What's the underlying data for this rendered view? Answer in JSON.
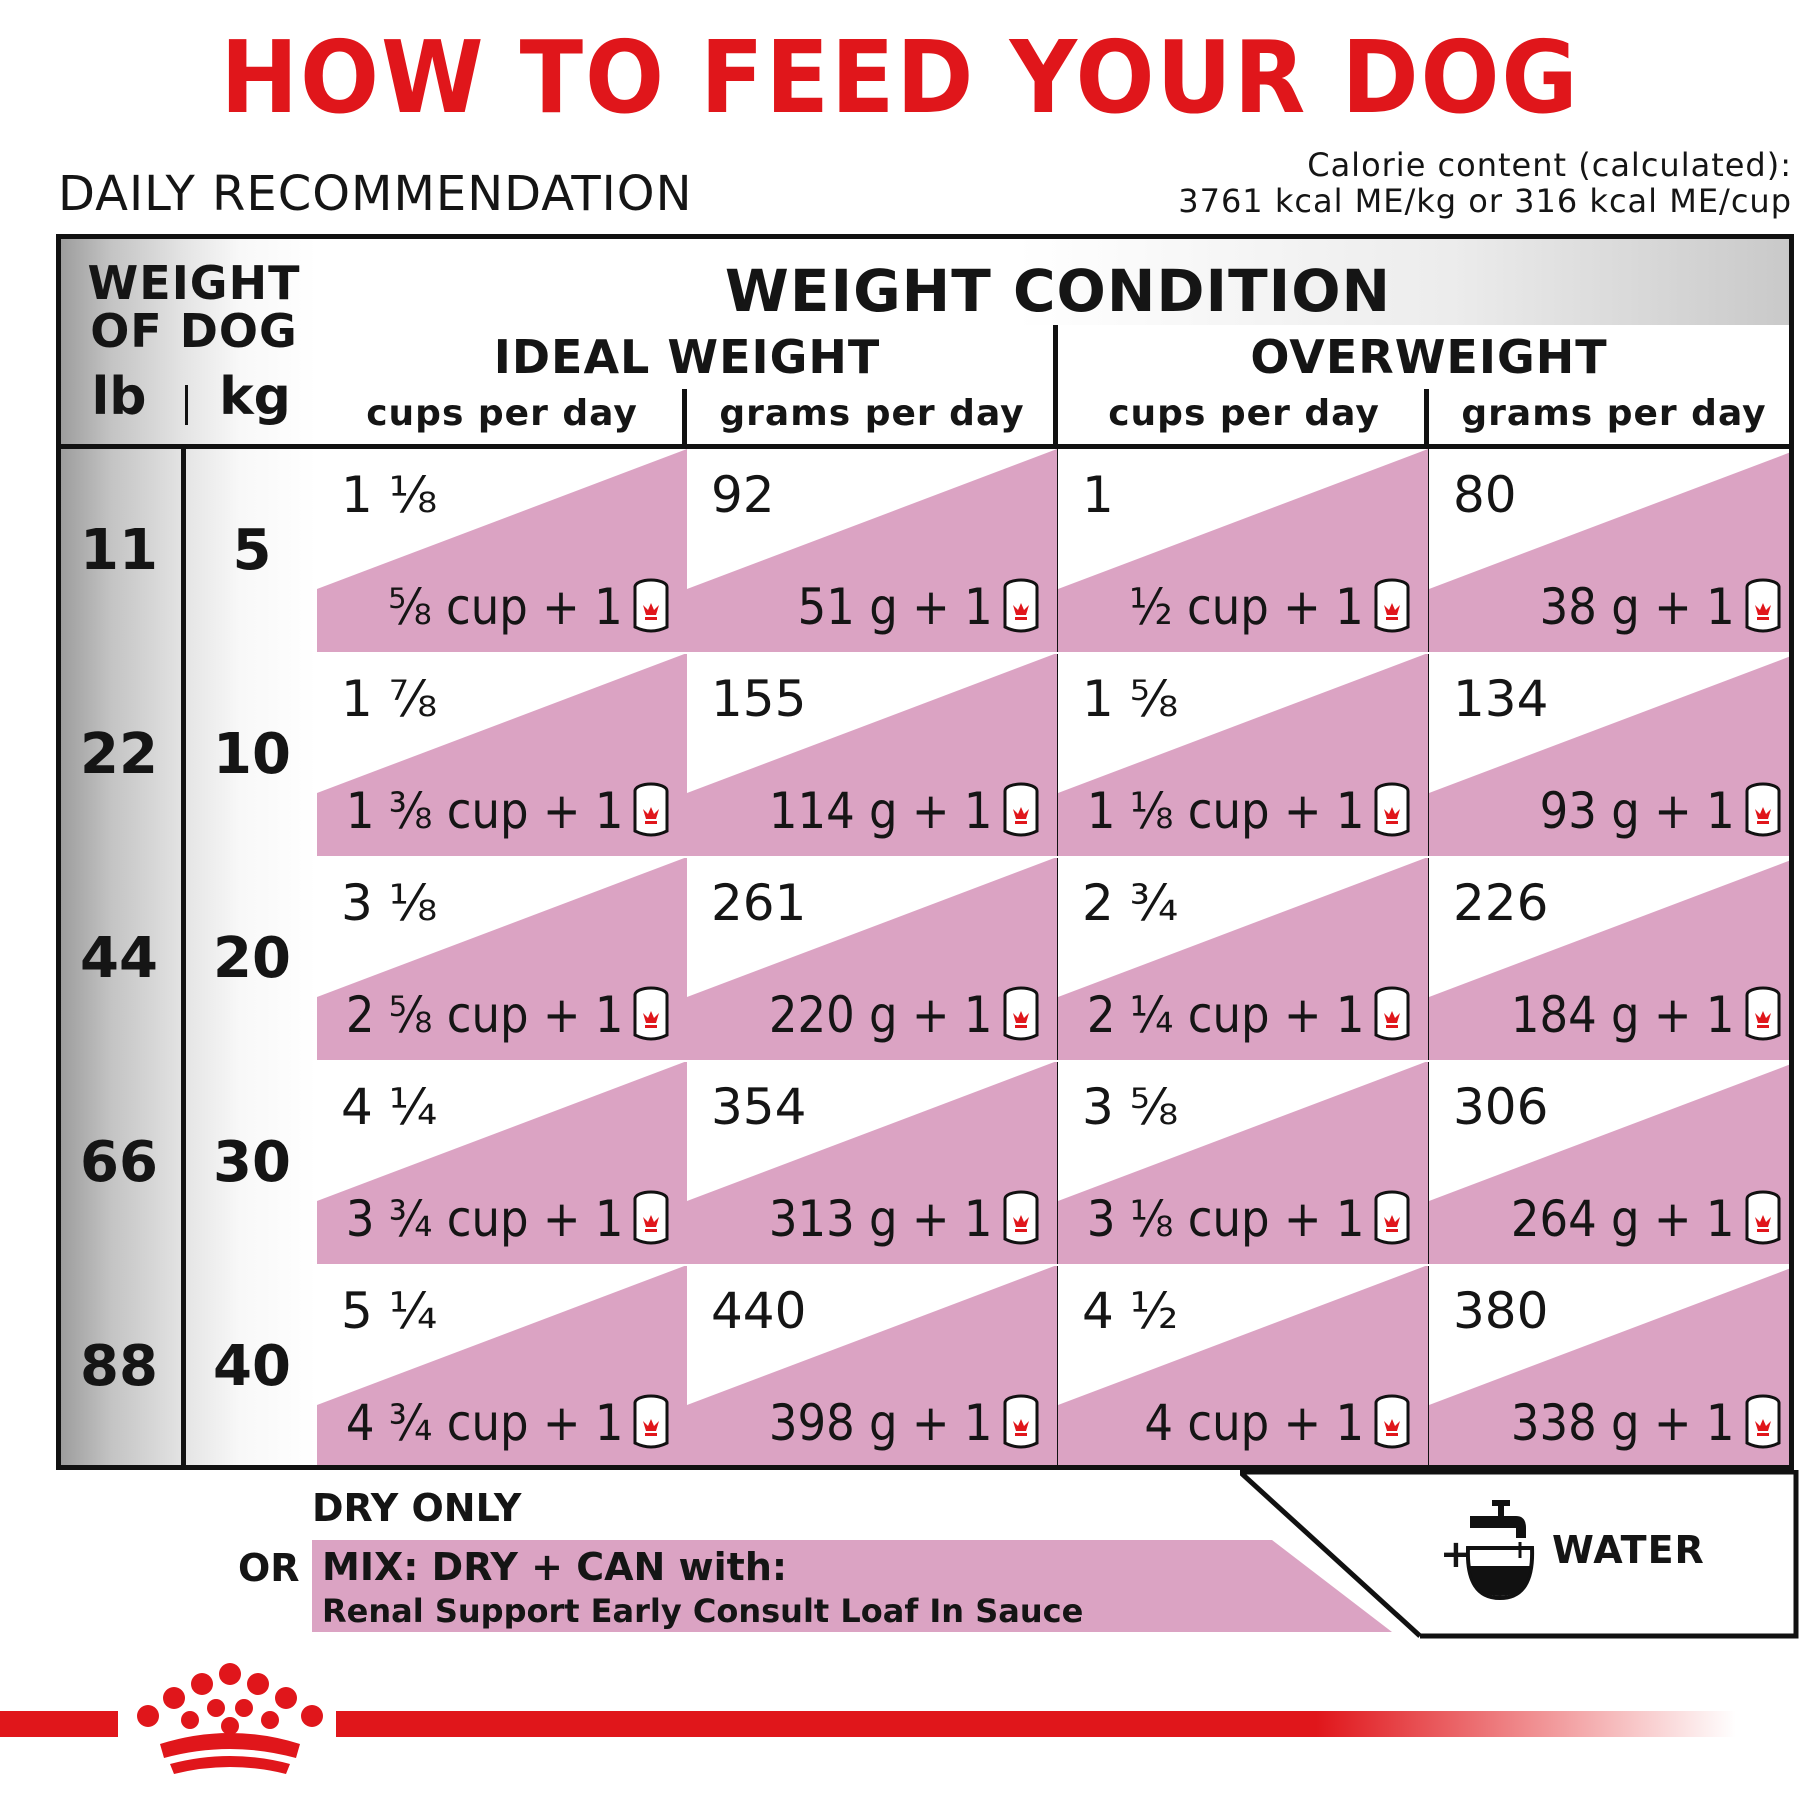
{
  "title": "HOW TO FEED YOUR DOG",
  "daily_recommendation": "DAILY RECOMMENDATION",
  "calorie": {
    "line1": "Calorie content (calculated):",
    "line2": "3761 kcal ME/kg or 316 kcal ME/cup"
  },
  "table": {
    "weight_header": "WEIGHT OF DOG",
    "unit_lb": "lb",
    "unit_kg": "kg",
    "condition_header": "WEIGHT CONDITION",
    "groups": [
      "IDEAL WEIGHT",
      "OVERWEIGHT"
    ],
    "subheaders": [
      "cups per day",
      "grams per day",
      "cups per day",
      "grams per day"
    ],
    "rows": [
      {
        "lb": "11",
        "kg": "5",
        "cells": [
          {
            "dry": "1 ⅛",
            "mix": "⅝ cup + 1"
          },
          {
            "dry": "92",
            "mix": "51 g + 1"
          },
          {
            "dry": "1",
            "mix": "½ cup + 1"
          },
          {
            "dry": "80",
            "mix": "38 g + 1"
          }
        ]
      },
      {
        "lb": "22",
        "kg": "10",
        "cells": [
          {
            "dry": "1 ⅞",
            "mix": "1 ⅜ cup + 1"
          },
          {
            "dry": "155",
            "mix": "114 g + 1"
          },
          {
            "dry": "1 ⅝",
            "mix": "1 ⅛ cup + 1"
          },
          {
            "dry": "134",
            "mix": "93 g + 1"
          }
        ]
      },
      {
        "lb": "44",
        "kg": "20",
        "cells": [
          {
            "dry": "3 ⅛",
            "mix": "2 ⅝ cup + 1"
          },
          {
            "dry": "261",
            "mix": "220 g + 1"
          },
          {
            "dry": "2 ¾",
            "mix": "2 ¼ cup + 1"
          },
          {
            "dry": "226",
            "mix": "184 g + 1"
          }
        ]
      },
      {
        "lb": "66",
        "kg": "30",
        "cells": [
          {
            "dry": "4 ¼",
            "mix": "3 ¾ cup + 1"
          },
          {
            "dry": "354",
            "mix": "313 g + 1"
          },
          {
            "dry": "3 ⅝",
            "mix": "3 ⅛ cup + 1"
          },
          {
            "dry": "306",
            "mix": "264 g + 1"
          }
        ]
      },
      {
        "lb": "88",
        "kg": "40",
        "cells": [
          {
            "dry": "5 ¼",
            "mix": "4 ¾ cup + 1"
          },
          {
            "dry": "440",
            "mix": "398 g + 1"
          },
          {
            "dry": "4 ½",
            "mix": "4 cup + 1"
          },
          {
            "dry": "380",
            "mix": "338 g + 1"
          }
        ]
      }
    ]
  },
  "legend": {
    "dry_only": "DRY ONLY",
    "or": "OR",
    "mix_title": "MIX: DRY + CAN with:",
    "mix_product": "Renal Support Early Consult Loaf In Sauce",
    "plus": "+",
    "water": "WATER"
  },
  "icons": {
    "can": "can-icon",
    "faucet": "water-faucet-icon",
    "logo": "royal-crown-logo"
  },
  "colors": {
    "brand_red": "#e0161b",
    "mix_pink": "#dba3c3",
    "border": "#111111"
  }
}
